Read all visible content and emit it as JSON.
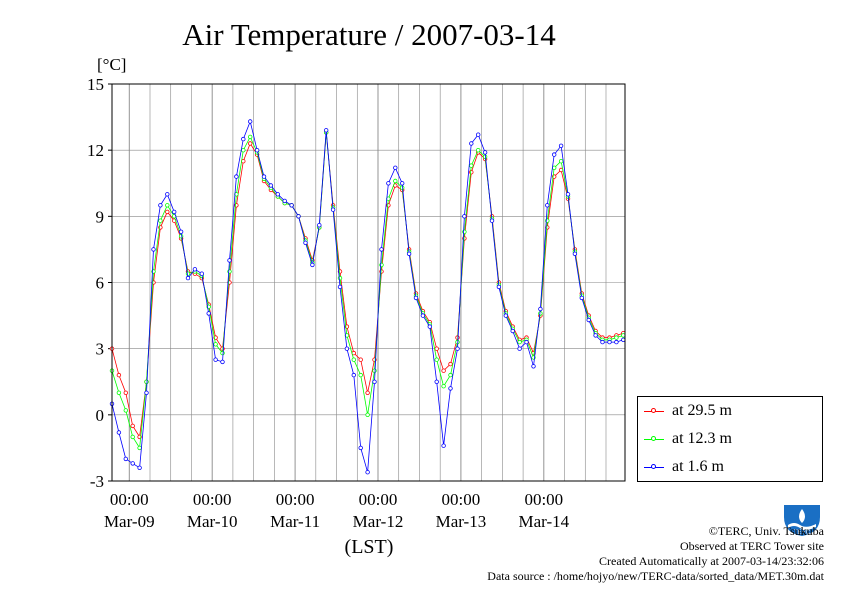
{
  "chart_data": {
    "type": "line",
    "title": "Air Temperature / 2007-03-14",
    "unit_label": "[°C]",
    "xlabel": "(LST)",
    "ylim": [
      -3,
      15
    ],
    "yticks": [
      -3,
      0,
      3,
      6,
      9,
      12,
      15
    ],
    "grid": true,
    "legend_position": "right",
    "x_range_days": [
      "2007-03-08 19:00",
      "2007-03-14 23:30"
    ],
    "x_ticks": [
      {
        "date": "2007-03-09",
        "time": "00:00",
        "day": "Mar-09"
      },
      {
        "date": "2007-03-10",
        "time": "00:00",
        "day": "Mar-10"
      },
      {
        "date": "2007-03-11",
        "time": "00:00",
        "day": "Mar-11"
      },
      {
        "date": "2007-03-12",
        "time": "00:00",
        "day": "Mar-12"
      },
      {
        "date": "2007-03-13",
        "time": "00:00",
        "day": "Mar-13"
      },
      {
        "date": "2007-03-14",
        "time": "00:00",
        "day": "Mar-14"
      }
    ],
    "series": [
      {
        "name": "at 29.5 m",
        "color": "#ff0000",
        "x": [
          "2007-03-08 19:00",
          "2007-03-08 21:00",
          "2007-03-08 23:00",
          "2007-03-09 01:00",
          "2007-03-09 03:00",
          "2007-03-09 05:00",
          "2007-03-09 07:00",
          "2007-03-09 09:00",
          "2007-03-09 11:00",
          "2007-03-09 13:00",
          "2007-03-09 15:00",
          "2007-03-09 17:00",
          "2007-03-09 19:00",
          "2007-03-09 21:00",
          "2007-03-09 23:00",
          "2007-03-10 01:00",
          "2007-03-10 03:00",
          "2007-03-10 05:00",
          "2007-03-10 07:00",
          "2007-03-10 09:00",
          "2007-03-10 11:00",
          "2007-03-10 13:00",
          "2007-03-10 15:00",
          "2007-03-10 17:00",
          "2007-03-10 19:00",
          "2007-03-10 21:00",
          "2007-03-10 23:00",
          "2007-03-11 01:00",
          "2007-03-11 03:00",
          "2007-03-11 05:00",
          "2007-03-11 07:00",
          "2007-03-11 09:00",
          "2007-03-11 11:00",
          "2007-03-11 13:00",
          "2007-03-11 15:00",
          "2007-03-11 17:00",
          "2007-03-11 19:00",
          "2007-03-11 21:00",
          "2007-03-11 23:00",
          "2007-03-12 01:00",
          "2007-03-12 03:00",
          "2007-03-12 05:00",
          "2007-03-12 07:00",
          "2007-03-12 09:00",
          "2007-03-12 11:00",
          "2007-03-12 13:00",
          "2007-03-12 15:00",
          "2007-03-12 17:00",
          "2007-03-12 19:00",
          "2007-03-12 21:00",
          "2007-03-12 23:00",
          "2007-03-13 01:00",
          "2007-03-13 03:00",
          "2007-03-13 05:00",
          "2007-03-13 07:00",
          "2007-03-13 09:00",
          "2007-03-13 11:00",
          "2007-03-13 13:00",
          "2007-03-13 15:00",
          "2007-03-13 17:00",
          "2007-03-13 19:00",
          "2007-03-13 21:00",
          "2007-03-13 23:00",
          "2007-03-14 01:00",
          "2007-03-14 03:00",
          "2007-03-14 05:00",
          "2007-03-14 07:00",
          "2007-03-14 09:00",
          "2007-03-14 11:00",
          "2007-03-14 13:00",
          "2007-03-14 15:00",
          "2007-03-14 17:00",
          "2007-03-14 19:00",
          "2007-03-14 21:00",
          "2007-03-14 23:00"
        ],
        "y": [
          3.0,
          1.8,
          1.0,
          -0.5,
          -1.0,
          1.5,
          6.0,
          8.5,
          9.2,
          8.8,
          8.0,
          6.5,
          6.4,
          6.2,
          5.0,
          3.5,
          3.0,
          6.0,
          9.5,
          11.5,
          12.3,
          11.8,
          10.6,
          10.2,
          9.9,
          9.6,
          9.5,
          9.0,
          8.0,
          7.0,
          8.5,
          12.8,
          9.5,
          6.5,
          4.0,
          2.8,
          2.5,
          1.0,
          2.5,
          6.5,
          9.5,
          10.4,
          10.2,
          7.5,
          5.5,
          4.7,
          4.2,
          3.0,
          2.0,
          2.3,
          3.5,
          8.0,
          11.0,
          11.9,
          11.6,
          9.0,
          6.0,
          4.7,
          4.0,
          3.4,
          3.5,
          2.8,
          4.5,
          8.5,
          10.8,
          11.1,
          9.8,
          7.5,
          5.5,
          4.5,
          3.8,
          3.5,
          3.5,
          3.6,
          3.7
        ]
      },
      {
        "name": "at 12.3 m",
        "color": "#00ff00",
        "x": [
          "2007-03-08 19:00",
          "2007-03-08 21:00",
          "2007-03-08 23:00",
          "2007-03-09 01:00",
          "2007-03-09 03:00",
          "2007-03-09 05:00",
          "2007-03-09 07:00",
          "2007-03-09 09:00",
          "2007-03-09 11:00",
          "2007-03-09 13:00",
          "2007-03-09 15:00",
          "2007-03-09 17:00",
          "2007-03-09 19:00",
          "2007-03-09 21:00",
          "2007-03-09 23:00",
          "2007-03-10 01:00",
          "2007-03-10 03:00",
          "2007-03-10 05:00",
          "2007-03-10 07:00",
          "2007-03-10 09:00",
          "2007-03-10 11:00",
          "2007-03-10 13:00",
          "2007-03-10 15:00",
          "2007-03-10 17:00",
          "2007-03-10 19:00",
          "2007-03-10 21:00",
          "2007-03-10 23:00",
          "2007-03-11 01:00",
          "2007-03-11 03:00",
          "2007-03-11 05:00",
          "2007-03-11 07:00",
          "2007-03-11 09:00",
          "2007-03-11 11:00",
          "2007-03-11 13:00",
          "2007-03-11 15:00",
          "2007-03-11 17:00",
          "2007-03-11 19:00",
          "2007-03-11 21:00",
          "2007-03-11 23:00",
          "2007-03-12 01:00",
          "2007-03-12 03:00",
          "2007-03-12 05:00",
          "2007-03-12 07:00",
          "2007-03-12 09:00",
          "2007-03-12 11:00",
          "2007-03-12 13:00",
          "2007-03-12 15:00",
          "2007-03-12 17:00",
          "2007-03-12 19:00",
          "2007-03-12 21:00",
          "2007-03-12 23:00",
          "2007-03-13 01:00",
          "2007-03-13 03:00",
          "2007-03-13 05:00",
          "2007-03-13 07:00",
          "2007-03-13 09:00",
          "2007-03-13 11:00",
          "2007-03-13 13:00",
          "2007-03-13 15:00",
          "2007-03-13 17:00",
          "2007-03-13 19:00",
          "2007-03-13 21:00",
          "2007-03-13 23:00",
          "2007-03-14 01:00",
          "2007-03-14 03:00",
          "2007-03-14 05:00",
          "2007-03-14 07:00",
          "2007-03-14 09:00",
          "2007-03-14 11:00",
          "2007-03-14 13:00",
          "2007-03-14 15:00",
          "2007-03-14 17:00",
          "2007-03-14 19:00",
          "2007-03-14 21:00",
          "2007-03-14 23:00"
        ],
        "y": [
          2.0,
          1.0,
          0.2,
          -1.0,
          -1.5,
          1.5,
          6.5,
          8.8,
          9.5,
          9.0,
          8.1,
          6.4,
          6.5,
          6.3,
          4.9,
          3.2,
          2.8,
          6.5,
          10.0,
          12.0,
          12.6,
          11.9,
          10.7,
          10.3,
          9.9,
          9.6,
          9.5,
          9.0,
          7.9,
          6.9,
          8.5,
          12.8,
          9.4,
          6.2,
          3.6,
          2.5,
          1.8,
          0.0,
          2.0,
          6.8,
          9.8,
          10.6,
          10.3,
          7.4,
          5.4,
          4.6,
          4.1,
          2.5,
          1.3,
          1.8,
          3.3,
          8.3,
          11.3,
          12.0,
          11.7,
          8.9,
          5.9,
          4.6,
          3.9,
          3.3,
          3.4,
          2.6,
          4.6,
          8.8,
          11.2,
          11.5,
          9.9,
          7.4,
          5.4,
          4.4,
          3.7,
          3.4,
          3.4,
          3.5,
          3.6
        ]
      },
      {
        "name": "at 1.6 m",
        "color": "#0000ff",
        "x": [
          "2007-03-08 19:00",
          "2007-03-08 21:00",
          "2007-03-08 23:00",
          "2007-03-09 01:00",
          "2007-03-09 03:00",
          "2007-03-09 05:00",
          "2007-03-09 07:00",
          "2007-03-09 09:00",
          "2007-03-09 11:00",
          "2007-03-09 13:00",
          "2007-03-09 15:00",
          "2007-03-09 17:00",
          "2007-03-09 19:00",
          "2007-03-09 21:00",
          "2007-03-09 23:00",
          "2007-03-10 01:00",
          "2007-03-10 03:00",
          "2007-03-10 05:00",
          "2007-03-10 07:00",
          "2007-03-10 09:00",
          "2007-03-10 11:00",
          "2007-03-10 13:00",
          "2007-03-10 15:00",
          "2007-03-10 17:00",
          "2007-03-10 19:00",
          "2007-03-10 21:00",
          "2007-03-10 23:00",
          "2007-03-11 01:00",
          "2007-03-11 03:00",
          "2007-03-11 05:00",
          "2007-03-11 07:00",
          "2007-03-11 09:00",
          "2007-03-11 11:00",
          "2007-03-11 13:00",
          "2007-03-11 15:00",
          "2007-03-11 17:00",
          "2007-03-11 19:00",
          "2007-03-11 21:00",
          "2007-03-11 23:00",
          "2007-03-12 01:00",
          "2007-03-12 03:00",
          "2007-03-12 05:00",
          "2007-03-12 07:00",
          "2007-03-12 09:00",
          "2007-03-12 11:00",
          "2007-03-12 13:00",
          "2007-03-12 15:00",
          "2007-03-12 17:00",
          "2007-03-12 19:00",
          "2007-03-12 21:00",
          "2007-03-12 23:00",
          "2007-03-13 01:00",
          "2007-03-13 03:00",
          "2007-03-13 05:00",
          "2007-03-13 07:00",
          "2007-03-13 09:00",
          "2007-03-13 11:00",
          "2007-03-13 13:00",
          "2007-03-13 15:00",
          "2007-03-13 17:00",
          "2007-03-13 19:00",
          "2007-03-13 21:00",
          "2007-03-13 23:00",
          "2007-03-14 01:00",
          "2007-03-14 03:00",
          "2007-03-14 05:00",
          "2007-03-14 07:00",
          "2007-03-14 09:00",
          "2007-03-14 11:00",
          "2007-03-14 13:00",
          "2007-03-14 15:00",
          "2007-03-14 17:00",
          "2007-03-14 19:00",
          "2007-03-14 21:00",
          "2007-03-14 23:00"
        ],
        "y": [
          0.5,
          -0.8,
          -2.0,
          -2.2,
          -2.4,
          1.0,
          7.5,
          9.5,
          10.0,
          9.2,
          8.3,
          6.2,
          6.6,
          6.4,
          4.6,
          2.5,
          2.4,
          7.0,
          10.8,
          12.5,
          13.3,
          12.0,
          10.8,
          10.4,
          10.0,
          9.7,
          9.5,
          9.0,
          7.8,
          6.8,
          8.6,
          12.9,
          9.3,
          5.8,
          3.0,
          1.8,
          -1.5,
          -2.6,
          1.5,
          7.5,
          10.5,
          11.2,
          10.5,
          7.3,
          5.3,
          4.5,
          4.0,
          1.5,
          -1.4,
          1.2,
          3.0,
          9.0,
          12.3,
          12.7,
          11.9,
          8.8,
          5.8,
          4.5,
          3.8,
          3.0,
          3.3,
          2.2,
          4.8,
          9.5,
          11.8,
          12.2,
          10.0,
          7.3,
          5.3,
          4.3,
          3.6,
          3.3,
          3.3,
          3.3,
          3.4
        ]
      }
    ]
  },
  "footer": {
    "copyright": "©TERC, Univ. Tsukuba",
    "observed": "Observed at TERC Tower site",
    "created": "Created Automatically at 2007-03-14/23:32:06",
    "source": "Data source : /home/hojyo/new/TERC-data/sorted_data/MET.30m.dat",
    "logo_text": "TERC"
  }
}
